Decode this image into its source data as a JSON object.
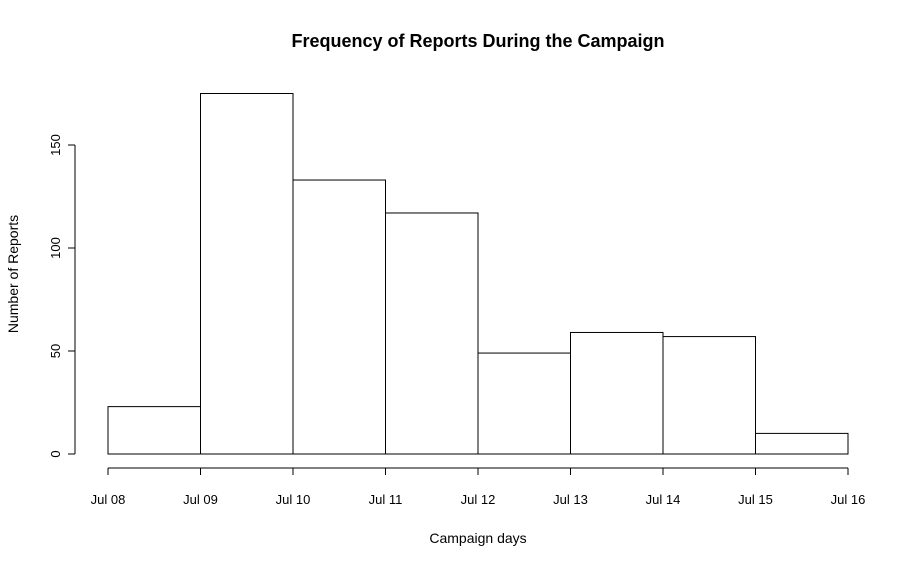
{
  "chart_data": {
    "type": "bar",
    "title": "Frequency of Reports During the Campaign",
    "xlabel": "Campaign days",
    "ylabel": "Number of Reports",
    "bin_edges": [
      "Jul 08",
      "Jul 09",
      "Jul 10",
      "Jul 11",
      "Jul 12",
      "Jul 13",
      "Jul 14",
      "Jul 15",
      "Jul 16"
    ],
    "values": [
      23,
      175,
      133,
      117,
      49,
      59,
      57,
      10
    ],
    "x_tick_labels": [
      "Jul 08",
      "Jul 09",
      "Jul 10",
      "Jul 11",
      "Jul 12",
      "Jul 13",
      "Jul 14",
      "Jul 15",
      "Jul 16"
    ],
    "y_ticks": [
      0,
      50,
      100,
      150
    ],
    "ylim": [
      0,
      175
    ],
    "grid": false,
    "legend": "none",
    "colors": {
      "bar_fill": "#ffffff",
      "bar_stroke": "#000000"
    }
  }
}
